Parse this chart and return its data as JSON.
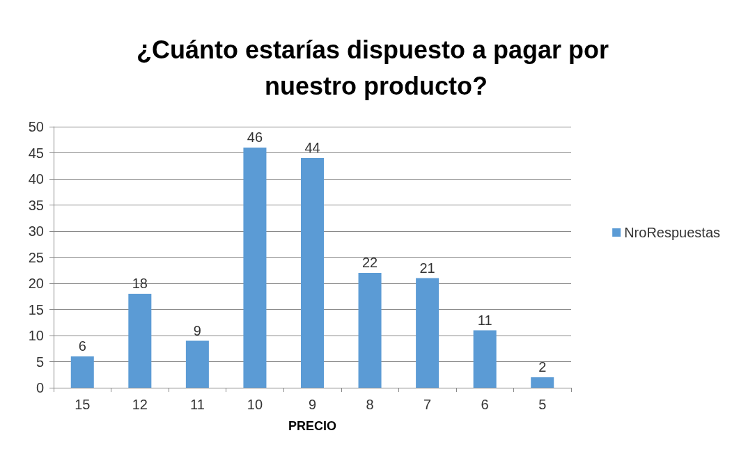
{
  "chart_data": {
    "type": "bar",
    "title": "¿Cuánto estarías dispuesto a pagar por nuestro producto?",
    "xlabel": "PRECIO",
    "categories": [
      "15",
      "12",
      "11",
      "10",
      "9",
      "8",
      "7",
      "6",
      "5"
    ],
    "series": [
      {
        "name": "NroRespuestas",
        "color": "#5b9bd5",
        "values": [
          6,
          18,
          9,
          46,
          44,
          22,
          21,
          11,
          2
        ]
      }
    ],
    "ylim": [
      0,
      50
    ],
    "yticks": [
      0,
      5,
      10,
      15,
      20,
      25,
      30,
      35,
      40,
      45,
      50
    ],
    "grid": "y",
    "legend": "right",
    "data_labels": true
  }
}
